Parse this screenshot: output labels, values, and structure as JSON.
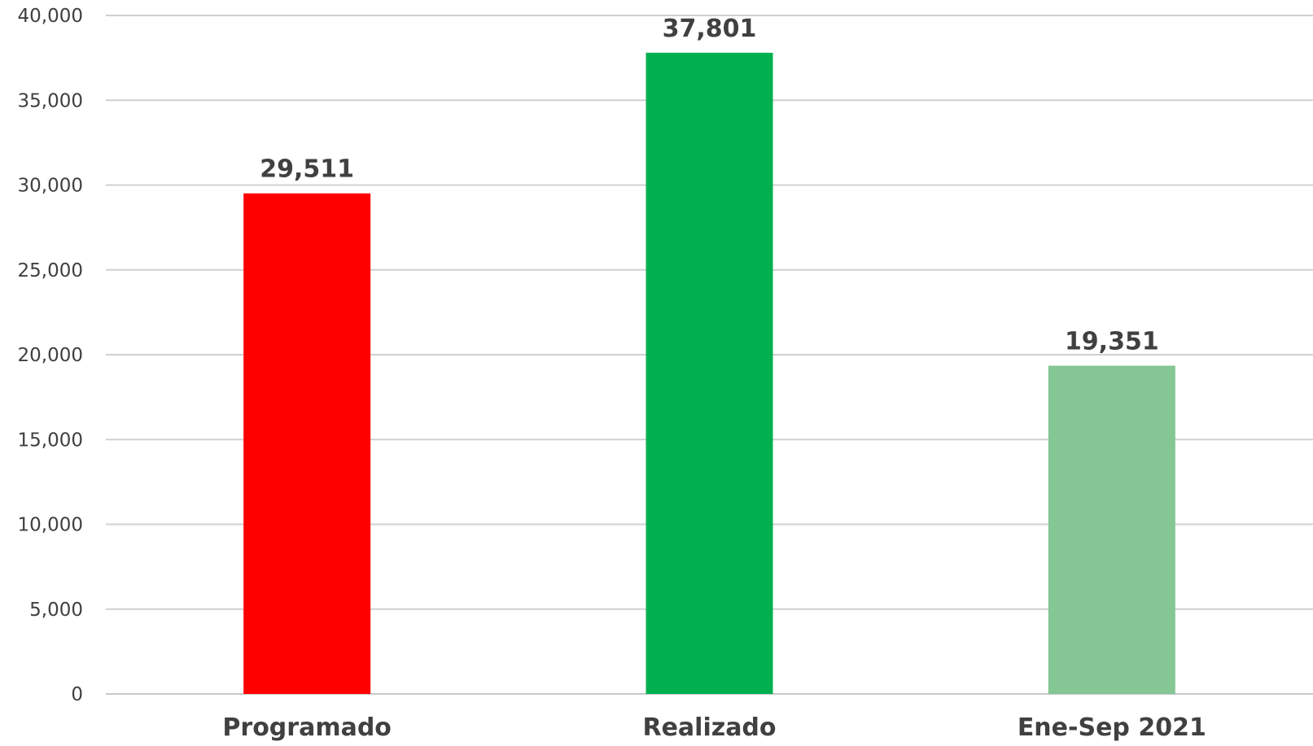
{
  "chart_data": {
    "type": "bar",
    "categories": [
      "Programado",
      "Realizado",
      "Ene-Sep 2021"
    ],
    "values": [
      29511,
      37801,
      19351
    ],
    "data_labels": [
      "29,511",
      "37,801",
      "19,351"
    ],
    "colors": [
      "#ff0000",
      "#00b050",
      "#84c694"
    ],
    "ylim": [
      0,
      40000
    ],
    "yticks": [
      0,
      5000,
      10000,
      15000,
      20000,
      25000,
      30000,
      35000,
      40000
    ],
    "ytick_labels": [
      "0",
      "5,000",
      "10,000",
      "15,000",
      "20,000",
      "25,000",
      "30,000",
      "35,000",
      "40,000"
    ],
    "grid": true,
    "title": "",
    "xlabel": "",
    "ylabel": ""
  }
}
